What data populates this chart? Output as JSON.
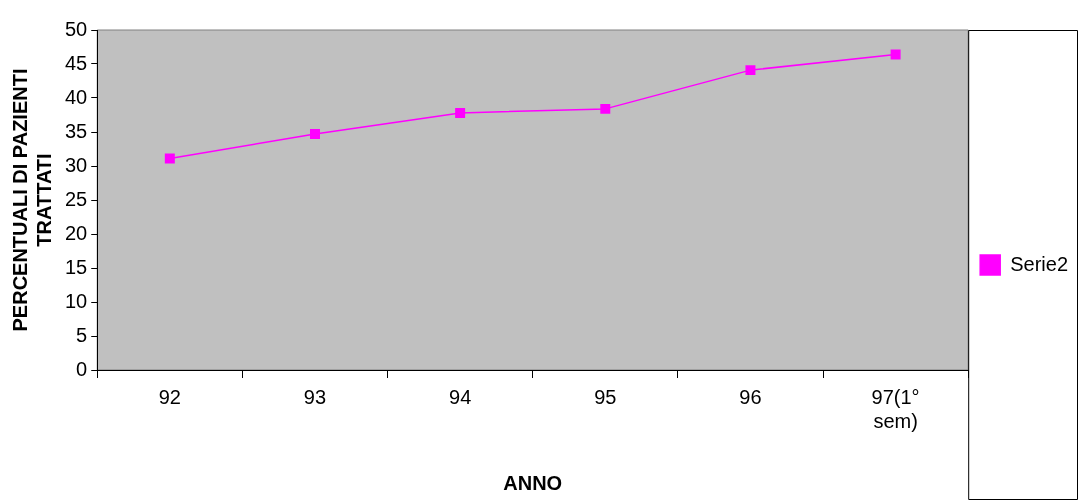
{
  "chart_data": {
    "type": "line",
    "xlabel": "ANNO",
    "ylabel": "PERCENTUALI DI PAZIENTI TRATTATI",
    "categories": [
      "92",
      "93",
      "94",
      "95",
      "96",
      "97(1° sem)"
    ],
    "series": [
      {
        "name": "Serie2",
        "color": "#ff00ff",
        "values": [
          31.1,
          34.7,
          37.8,
          38.4,
          44.1,
          46.4
        ]
      }
    ],
    "ylim": [
      0,
      50
    ],
    "yticks": [
      0,
      5,
      10,
      15,
      20,
      25,
      30,
      35,
      40,
      45,
      50
    ],
    "grid": false,
    "legend": "right",
    "marker": "square",
    "line_style": "solid"
  }
}
